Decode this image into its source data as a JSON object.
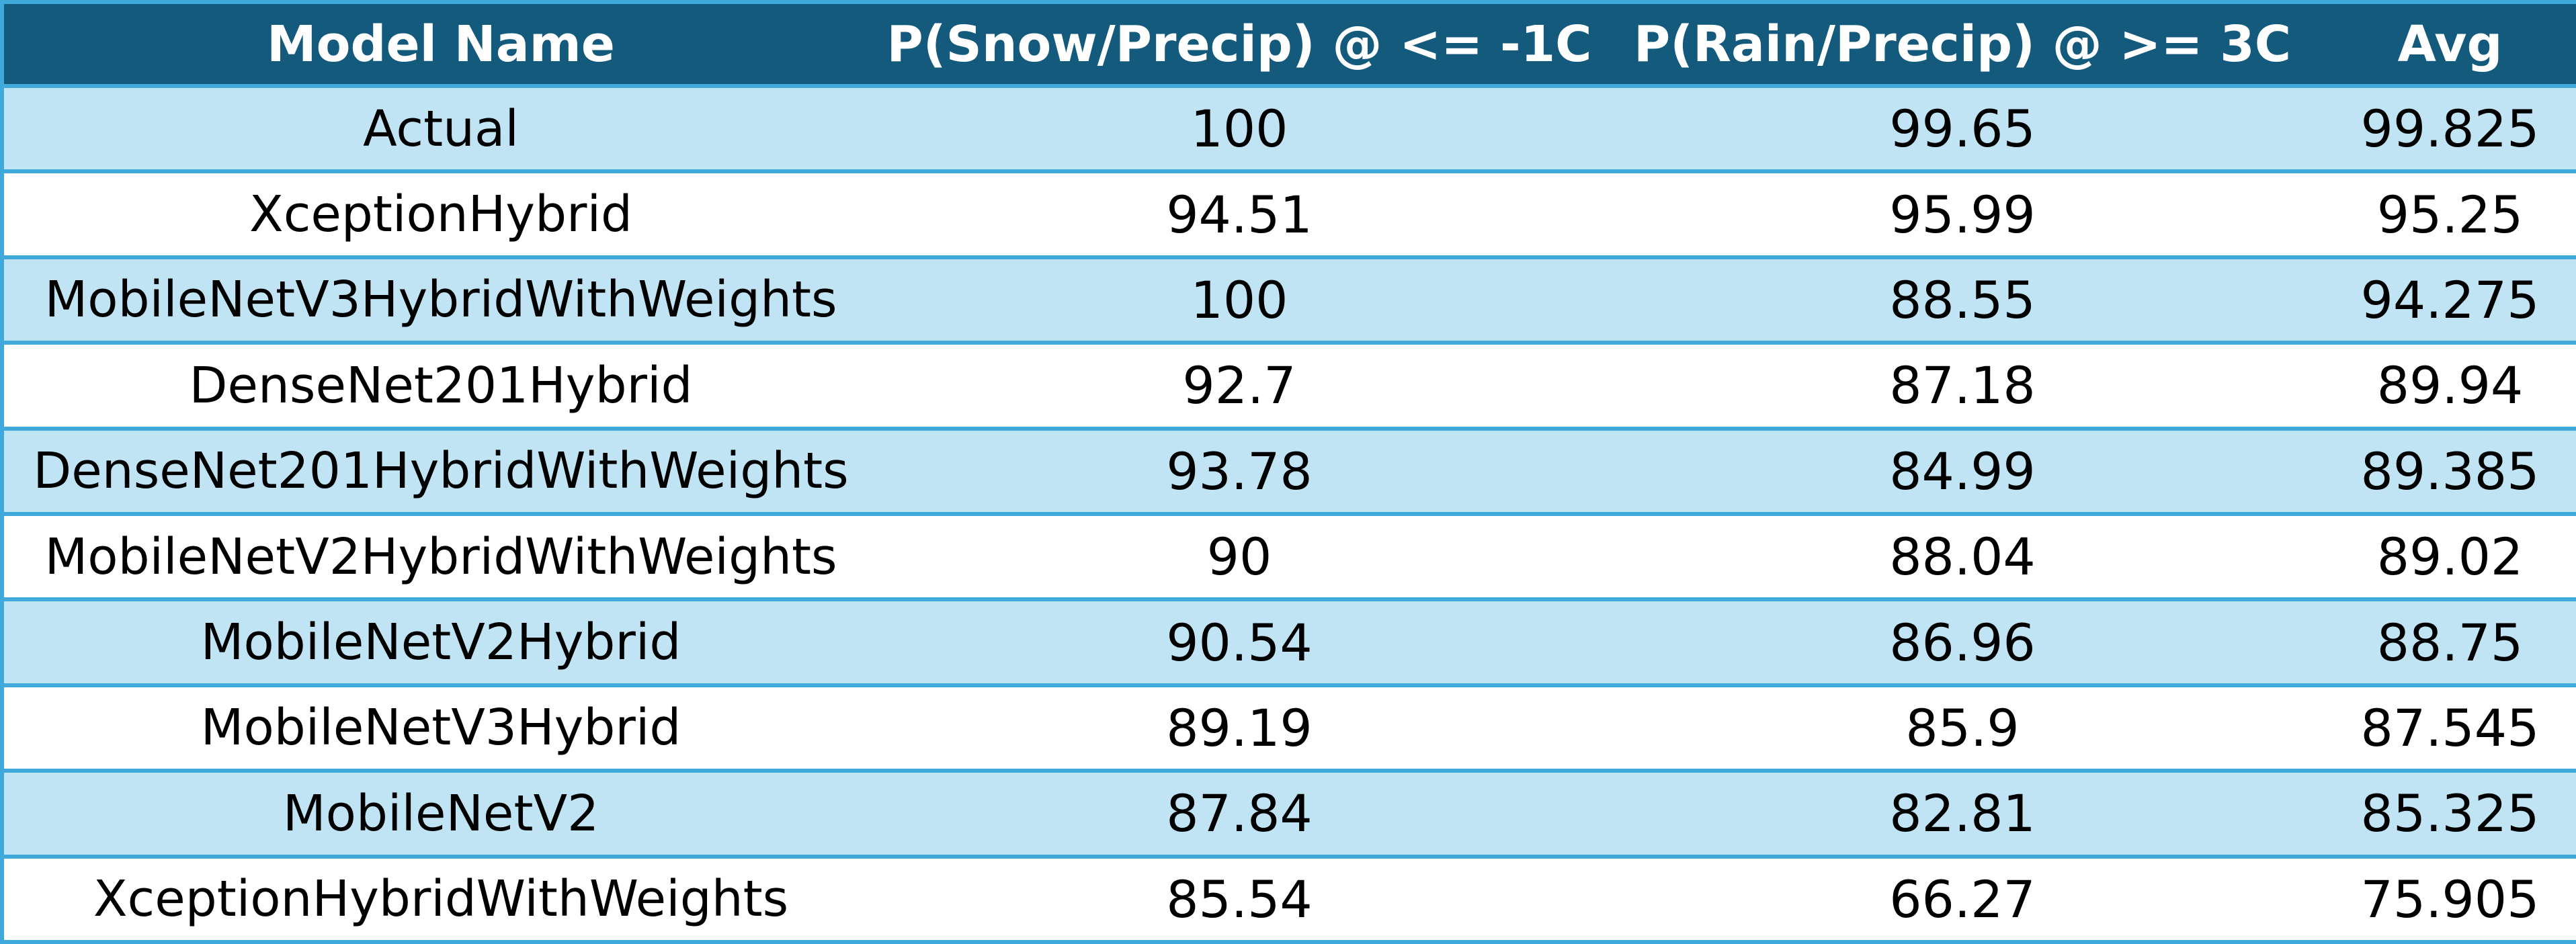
{
  "table": {
    "headers": [
      "Model Name",
      "P(Snow/Precip) @ <= -1C",
      "P(Rain/Precip) @ >= 3C",
      "Avg"
    ],
    "rows": [
      [
        "Actual",
        "100",
        "99.65",
        "99.825"
      ],
      [
        "XceptionHybrid",
        "94.51",
        "95.99",
        "95.25"
      ],
      [
        "MobileNetV3HybridWithWeights",
        "100",
        "88.55",
        "94.275"
      ],
      [
        "DenseNet201Hybrid",
        "92.7",
        "87.18",
        "89.94"
      ],
      [
        "DenseNet201HybridWithWeights",
        "93.78",
        "84.99",
        "89.385"
      ],
      [
        "MobileNetV2HybridWithWeights",
        "90",
        "88.04",
        "89.02"
      ],
      [
        "MobileNetV2Hybrid",
        "90.54",
        "86.96",
        "88.75"
      ],
      [
        "MobileNetV3Hybrid",
        "89.19",
        "85.9",
        "87.545"
      ],
      [
        "MobileNetV2",
        "87.84",
        "82.81",
        "85.325"
      ],
      [
        "XceptionHybridWithWeights",
        "85.54",
        "66.27",
        "75.905"
      ]
    ]
  },
  "colors": {
    "header_bg": "#145a7c",
    "header_text": "#ffffff",
    "band_bg": "#c0e4f4",
    "plain_bg": "#ffffff",
    "grid_line": "#3ea9da"
  }
}
